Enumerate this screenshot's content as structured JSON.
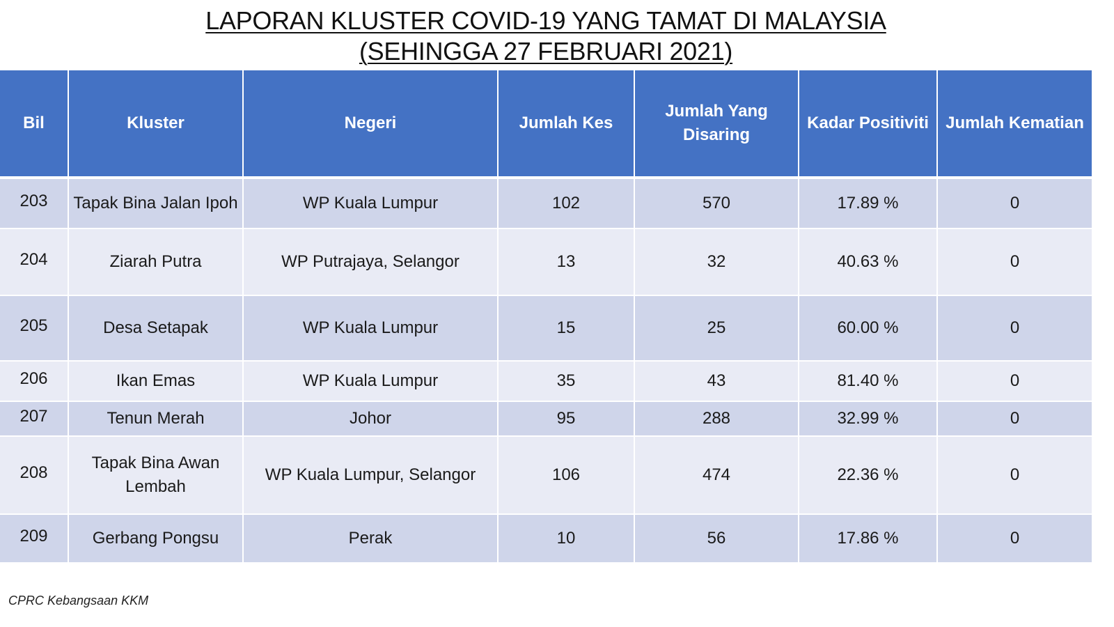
{
  "title": {
    "line1": "LAPORAN KLUSTER COVID-19 YANG TAMAT DI MALAYSIA",
    "line2": "(SEHINGGA  27 FEBRUARI 2021)"
  },
  "table": {
    "headers": [
      "Bil",
      "Kluster",
      "Negeri",
      "Jumlah Kes",
      "Jumlah Yang Disaring",
      "Kadar Positiviti",
      "Jumlah Kematian"
    ],
    "rows": [
      [
        "203",
        "Tapak Bina Jalan Ipoh",
        "WP Kuala Lumpur",
        "102",
        "570",
        "17.89 %",
        "0"
      ],
      [
        "204",
        "Ziarah Putra",
        "WP Putrajaya, Selangor",
        "13",
        "32",
        "40.63 %",
        "0"
      ],
      [
        "205",
        "Desa Setapak",
        "WP Kuala Lumpur",
        "15",
        "25",
        "60.00 %",
        "0"
      ],
      [
        "206",
        "Ikan Emas",
        "WP Kuala Lumpur",
        "35",
        "43",
        "81.40 %",
        "0"
      ],
      [
        "207",
        "Tenun Merah",
        "Johor",
        "95",
        "288",
        "32.99 %",
        "0"
      ],
      [
        "208",
        "Tapak Bina Awan Lembah",
        "WP Kuala Lumpur, Selangor",
        "106",
        "474",
        "22.36 %",
        "0"
      ],
      [
        "209",
        "Gerbang Pongsu",
        "Perak",
        "10",
        "56",
        "17.86 %",
        "0"
      ]
    ]
  },
  "footer": "CPRC Kebangsaan KKM",
  "colors": {
    "header_bg": "#4472c4",
    "row_odd": "#cfd5ea",
    "row_even": "#e9ebf5"
  }
}
